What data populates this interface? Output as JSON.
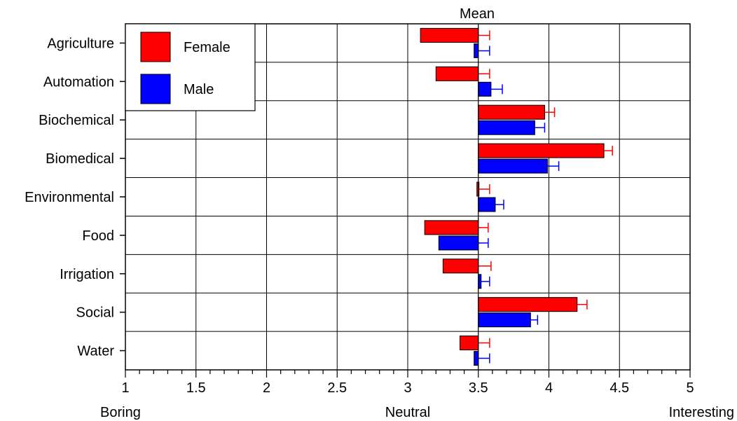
{
  "chart_data": {
    "type": "bar",
    "title": "Mean",
    "orientation": "horizontal",
    "categories": [
      "Agriculture",
      "Automation",
      "Biochemical",
      "Biomedical",
      "Environmental",
      "Food",
      "Irrigation",
      "Social",
      "Water"
    ],
    "baseline": 3.5,
    "xlim": [
      1,
      5
    ],
    "x_ticks": [
      "1",
      "1.5",
      "2",
      "2.5",
      "3",
      "3.5",
      "4",
      "4.5",
      "5"
    ],
    "x_tick_values": [
      1,
      1.5,
      2,
      2.5,
      3,
      3.5,
      4,
      4.5,
      5
    ],
    "scale_labels": [
      {
        "value": 1,
        "text": "Boring"
      },
      {
        "value": 3,
        "text": "Neutral"
      },
      {
        "value": 5,
        "text": "Interesting"
      }
    ],
    "grid": true,
    "legend_position": "top-left",
    "series": [
      {
        "name": "Female",
        "color": "#ff0000",
        "values": [
          3.09,
          3.2,
          3.97,
          4.39,
          3.49,
          3.12,
          3.25,
          4.2,
          3.37
        ],
        "errors": [
          0.08,
          0.08,
          0.07,
          0.06,
          0.08,
          0.07,
          0.09,
          0.07,
          0.08
        ]
      },
      {
        "name": "Male",
        "color": "#0000ff",
        "values": [
          3.47,
          3.59,
          3.9,
          3.99,
          3.62,
          3.22,
          3.52,
          3.87,
          3.47
        ],
        "errors": [
          0.08,
          0.08,
          0.07,
          0.08,
          0.06,
          0.07,
          0.06,
          0.05,
          0.08
        ]
      }
    ]
  }
}
